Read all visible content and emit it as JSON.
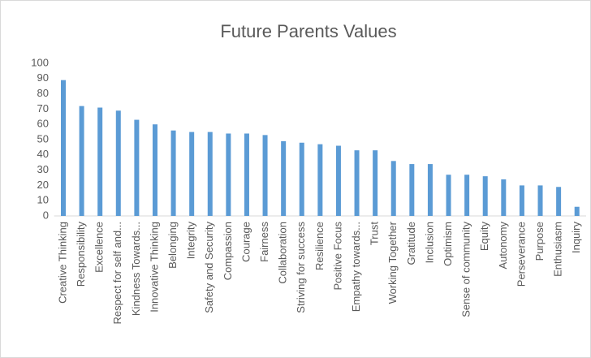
{
  "chart_data": {
    "type": "bar",
    "title": "Future Parents Values",
    "categories": [
      "Creative Thinking",
      "Responsibility",
      "Excellence",
      "Respect for self and...",
      "Kindness Towards...",
      "Innovative Thinking",
      "Belonging",
      "Integrity",
      "Safety and Security",
      "Compassion",
      "Courage",
      "Fairness",
      "Collaboration",
      "Striving for success",
      "Resilience",
      "Positive Focus",
      "Empathy towards...",
      "Trust",
      "Working Together",
      "Gratitude",
      "Inclusion",
      "Optimism",
      "Sense of community",
      "Equity",
      "Autonomy",
      "Perseverance",
      "Purpose",
      "Enthusiasm",
      "Inquiry"
    ],
    "values": [
      89,
      72,
      71,
      69,
      63,
      60,
      56,
      55,
      55,
      54,
      54,
      53,
      49,
      48,
      47,
      46,
      43,
      43,
      36,
      34,
      34,
      27,
      27,
      26,
      24,
      20,
      20,
      19,
      6
    ],
    "color": "#5b9bd5",
    "ylim": [
      0,
      100
    ],
    "yticks": [
      0,
      10,
      20,
      30,
      40,
      50,
      60,
      70,
      80,
      90,
      100
    ],
    "grid": false
  }
}
